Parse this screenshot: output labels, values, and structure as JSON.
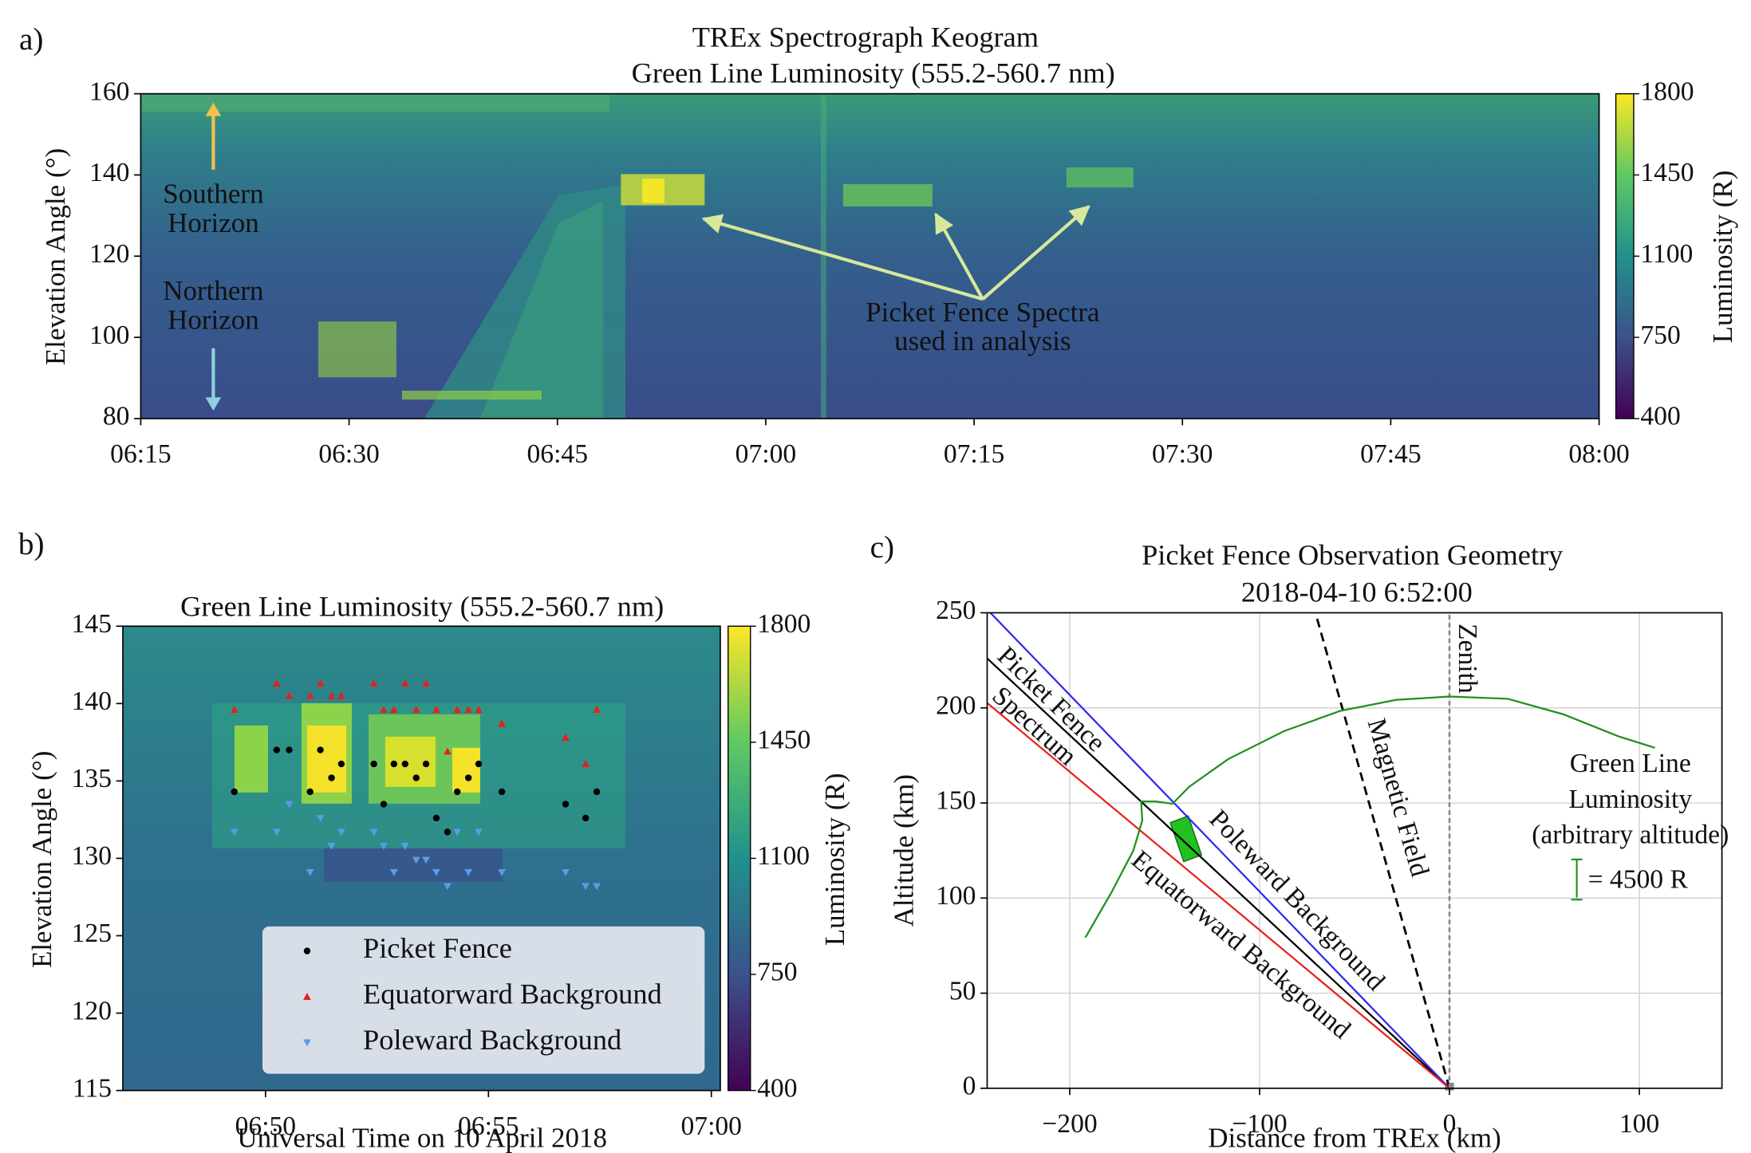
{
  "chart_data": [
    {
      "type": "heatmap",
      "panel_label": "a)",
      "title": "TREx Spectrograph Keogram",
      "subtitle": "Green Line Luminosity (555.2-560.7 nm)",
      "y_label": "Elevation Angle (°)",
      "xlim": [
        15,
        120
      ],
      "xticks": [
        {
          "value": 15,
          "label": "06:15"
        },
        {
          "value": 30,
          "label": "06:30"
        },
        {
          "value": 45,
          "label": "06:45"
        },
        {
          "value": 60,
          "label": "07:00"
        },
        {
          "value": 75,
          "label": "07:15"
        },
        {
          "value": 90,
          "label": "07:30"
        },
        {
          "value": 105,
          "label": "07:45"
        },
        {
          "value": 120,
          "label": "08:00"
        }
      ],
      "ylim": [
        80,
        160
      ],
      "yticks": [
        80,
        100,
        120,
        140,
        160
      ],
      "colorbar": {
        "label": "Luminosity (R)",
        "lim": [
          400,
          1800
        ],
        "ticks": [
          400,
          750,
          1100,
          1450,
          1800
        ]
      },
      "annotations": [
        {
          "lines": [
            "Southern",
            "Horizon"
          ],
          "color": "#f2c14e"
        },
        {
          "lines": [
            "Northern",
            "Horizon"
          ],
          "color": "#8fd0de"
        },
        {
          "lines": [
            "Picket Fence Spectra",
            "used in analysis"
          ],
          "color": "#d7e89a"
        }
      ]
    },
    {
      "type": "scatter",
      "panel_label": "b)",
      "title": "Green Line Luminosity (555.2-560.7 nm)",
      "x_label": "Universal Time on 10 April 2018",
      "y_label": "Elevation Angle (°)",
      "xlim": [
        46.8,
        60.2
      ],
      "xticks": [
        {
          "value": 50,
          "label": "06:50"
        },
        {
          "value": 55,
          "label": "06:55"
        },
        {
          "value": 60,
          "label": "07:00"
        }
      ],
      "ylim": [
        115,
        145
      ],
      "yticks": [
        115,
        120,
        125,
        130,
        135,
        140,
        145
      ],
      "colorbar": {
        "label": "Luminosity (R)",
        "lim": [
          400,
          1800
        ],
        "ticks": [
          400,
          750,
          1100,
          1450,
          1800
        ]
      },
      "legend": "lower left",
      "series": [
        {
          "name": "Picket Fence",
          "color": "#000000",
          "marker": "circle",
          "x": [
            49.3,
            50.25,
            50.53,
            51.0,
            51.23,
            51.48,
            51.7,
            52.43,
            52.65,
            52.88,
            53.13,
            53.38,
            53.6,
            53.83,
            54.08,
            54.3,
            54.55,
            54.78,
            55.3,
            56.73,
            57.18,
            57.43
          ],
          "values": [
            134.3,
            137.0,
            137.0,
            134.3,
            137.0,
            135.2,
            136.1,
            136.1,
            133.5,
            136.1,
            136.1,
            135.2,
            136.1,
            132.6,
            131.7,
            134.3,
            135.2,
            136.1,
            134.3,
            133.5,
            132.6,
            134.3
          ]
        },
        {
          "name": "Equatorward Background",
          "color": "#e8201a",
          "marker": "triangle-up",
          "x": [
            49.3,
            50.25,
            50.53,
            51.0,
            51.23,
            51.48,
            51.7,
            52.43,
            52.65,
            52.88,
            53.13,
            53.38,
            53.6,
            53.83,
            54.08,
            54.3,
            54.55,
            54.78,
            55.3,
            56.73,
            57.18,
            57.43
          ],
          "values": [
            139.6,
            141.3,
            140.5,
            140.5,
            141.3,
            140.5,
            140.5,
            141.3,
            139.6,
            139.6,
            141.3,
            139.6,
            141.3,
            139.6,
            136.9,
            139.6,
            139.6,
            139.6,
            138.7,
            137.8,
            136.1,
            139.6
          ]
        },
        {
          "name": "Poleward Background",
          "color": "#5b9be8",
          "marker": "triangle-down",
          "x": [
            49.3,
            50.25,
            50.53,
            51.0,
            51.23,
            51.48,
            51.7,
            52.43,
            52.65,
            52.88,
            53.13,
            53.38,
            53.6,
            53.83,
            54.08,
            54.3,
            54.55,
            54.78,
            55.3,
            56.73,
            57.18,
            57.43
          ],
          "values": [
            131.7,
            131.7,
            133.5,
            129.1,
            132.6,
            130.8,
            131.7,
            131.7,
            130.8,
            129.1,
            130.8,
            129.9,
            129.9,
            129.1,
            128.2,
            131.7,
            129.1,
            131.7,
            129.1,
            129.1,
            128.2,
            128.2
          ]
        }
      ]
    },
    {
      "type": "line",
      "panel_label": "c)",
      "title": "Picket Fence Observation Geometry",
      "subtitle": "2018-04-10 6:52:00",
      "x_label": "Distance from TREx (km)",
      "y_label": "Altitude (km)",
      "xlim": [
        -243.5,
        143.5
      ],
      "xticks": [
        {
          "value": -200,
          "label": "−200"
        },
        {
          "value": -100,
          "label": "−100"
        },
        0,
        100
      ],
      "ylim": [
        0,
        250
      ],
      "yticks": [
        0,
        50,
        100,
        150,
        200,
        250
      ],
      "grid": true,
      "series": [
        {
          "label": [
            "Picket Fence",
            "Spectrum"
          ],
          "color": "#000000",
          "linestyle": "solid",
          "x": [
            0,
            -243.5
          ],
          "values": [
            0,
            226
          ]
        },
        {
          "label": [
            "Poleward Background"
          ],
          "color": "#2b2bf0",
          "linestyle": "solid",
          "x": [
            0,
            -241.8
          ],
          "values": [
            0,
            250
          ]
        },
        {
          "label": [
            "Equatorward Background"
          ],
          "color": "#e8201a",
          "linestyle": "solid",
          "x": [
            0,
            -243.5
          ],
          "values": [
            0,
            202.6
          ]
        },
        {
          "label": [
            "Magnetic Field"
          ],
          "color": "#000000",
          "linestyle": "dashed",
          "x": [
            0,
            -70.6
          ],
          "values": [
            0,
            250
          ]
        },
        {
          "label": [
            "Zenith"
          ],
          "color": "#8a8a8a",
          "linestyle": "dashed",
          "x": [
            0,
            0
          ],
          "values": [
            0,
            250
          ]
        },
        {
          "label": [
            "Green Line",
            "Luminosity",
            "(arbitrary altitude)"
          ],
          "color": "#1f8f1f",
          "linestyle": "solid",
          "x": [
            -191.8,
            -178.2,
            -166.5,
            -161.8,
            -162.4,
            -154.7,
            -145.9,
            -137.1,
            -116.5,
            -87.1,
            -57.6,
            -28.2,
            0,
            30.6,
            60,
            89.4,
            108.2
          ],
          "values": [
            79.2,
            102.7,
            125,
            140.8,
            150.8,
            150.8,
            149.6,
            158.5,
            173.1,
            187.8,
            198.4,
            204.2,
            206,
            204.8,
            196.6,
            184.9,
            179
          ]
        }
      ],
      "scale_label": "= 4500 R"
    }
  ]
}
